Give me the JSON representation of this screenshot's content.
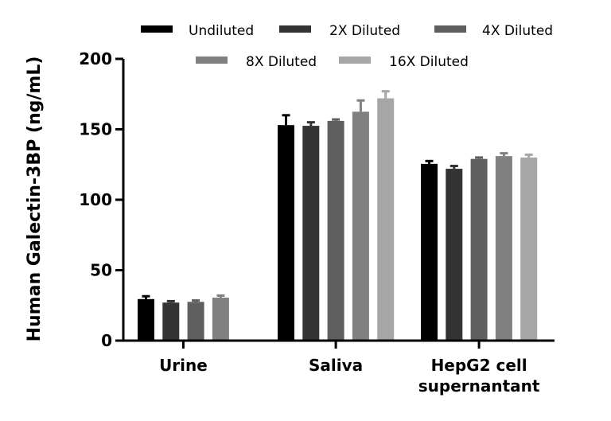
{
  "chart_data": {
    "type": "bar",
    "ylabel": "Human Galectin-3BP (ng/mL)",
    "xlabel": "",
    "ylim": [
      0,
      200
    ],
    "yticks": [
      0,
      50,
      100,
      150,
      200
    ],
    "grid": false,
    "legend_position": "top",
    "categories": [
      {
        "lines": [
          "Urine"
        ]
      },
      {
        "lines": [
          "Saliva"
        ]
      },
      {
        "lines": [
          "HepG2 cell",
          "supernantant"
        ]
      }
    ],
    "series": [
      {
        "name": "Undiluted",
        "color": "#000000",
        "values": [
          29.5,
          153,
          125.5
        ],
        "errors": [
          2,
          7,
          2
        ]
      },
      {
        "name": "2X Diluted",
        "color": "#333333",
        "values": [
          27,
          152.5,
          122
        ],
        "errors": [
          1,
          2.5,
          2
        ]
      },
      {
        "name": "4X Diluted",
        "color": "#5f5f5f",
        "values": [
          27.5,
          156,
          129
        ],
        "errors": [
          1,
          1,
          1
        ]
      },
      {
        "name": "8X Diluted",
        "color": "#808080",
        "values": [
          30.5,
          162.5,
          131
        ],
        "errors": [
          1.5,
          8,
          2
        ]
      },
      {
        "name": "16X Diluted",
        "color": "#a6a6a6",
        "values": [
          null,
          172,
          130
        ],
        "errors": [
          null,
          5,
          2
        ]
      }
    ]
  }
}
